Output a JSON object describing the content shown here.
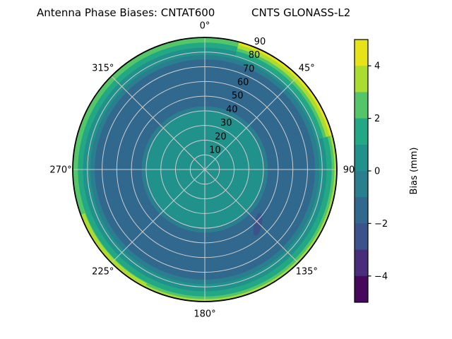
{
  "title": {
    "left": "Antenna Phase Biases: CNTAT600",
    "right": "CNTS GLONASS-L2"
  },
  "chart_data": {
    "type": "polar_contour",
    "title": "Antenna Phase Biases: CNTAT600  /  CNTS GLONASS-L2",
    "description": "Filled polar contour map of antenna phase bias (mm) vs azimuth (0-360 deg) and zenith angle (0-90, labeled radially). Viridis banded colormap, 1 mm per band.",
    "azimuth_tick_labels": [
      {
        "text": "0°",
        "angle_deg": 0
      },
      {
        "text": "45°",
        "angle_deg": 45
      },
      {
        "text": "90",
        "angle_deg": 90
      },
      {
        "text": "135°",
        "angle_deg": 135
      },
      {
        "text": "180°",
        "angle_deg": 180
      },
      {
        "text": "225°",
        "angle_deg": 225
      },
      {
        "text": "270°",
        "angle_deg": 270
      },
      {
        "text": "315°",
        "angle_deg": 315
      }
    ],
    "radial_tick_labels": [
      "10",
      "20",
      "30",
      "40",
      "50",
      "60",
      "70",
      "80",
      "90"
    ],
    "radial_tick_values": [
      10,
      20,
      30,
      40,
      50,
      60,
      70,
      80,
      90
    ],
    "radial_tick_angle_deg": 22.5,
    "zenith_max": 90,
    "grid": {
      "color": "#cccccc",
      "radial_circles": [
        10,
        20,
        30,
        40,
        50,
        60,
        70,
        80
      ],
      "spokes_every_deg": 45
    },
    "contour_discs": [
      {
        "zenith_to": 90,
        "color": "#54c568",
        "bias_band_mm": "2 to 3"
      },
      {
        "zenith_to": 86.5,
        "color": "#22a884",
        "bias_band_mm": "1 to 2"
      },
      {
        "zenith_to": 83,
        "color": "#21918c",
        "bias_band_mm": "0 to 1"
      },
      {
        "zenith_to": 78,
        "color": "#2a7f8e",
        "bias_band_mm": "-1 to 0"
      },
      {
        "zenith_to": 75,
        "color": "#31688e",
        "bias_band_mm": "-2 to -1"
      },
      {
        "zenith_to": 43,
        "color": "#2a7f8e",
        "bias_band_mm": "-1 to 0"
      },
      {
        "zenith_to": 40,
        "color": "#21918c",
        "bias_band_mm": "0 to 1"
      }
    ],
    "contour_sectors": [
      {
        "zenith_from": 88.3,
        "zenith_to": 90,
        "azimuth_from": 75,
        "azimuth_to": 207,
        "color": "#abdc32",
        "bias_band_mm": "3 to 4"
      },
      {
        "zenith_from": 87,
        "zenith_to": 89.3,
        "azimuth_from": 207,
        "azimuth_to": 250,
        "color": "#abdc32",
        "bias_band_mm": "3 to 4"
      },
      {
        "zenith_from": 89.3,
        "zenith_to": 90,
        "azimuth_from": 207,
        "azimuth_to": 250,
        "color": "#e6e419",
        "bias_band_mm": "4 to 5"
      },
      {
        "zenith_from": 85.5,
        "zenith_to": 88,
        "azimuth_from": 15,
        "azimuth_to": 75,
        "color": "#abdc32",
        "bias_band_mm": "3 to 4"
      },
      {
        "zenith_from": 88,
        "zenith_to": 90,
        "azimuth_from": 15,
        "azimuth_to": 75,
        "color": "#e6e419",
        "bias_band_mm": "4 to 5"
      },
      {
        "zenith_from": 83.5,
        "zenith_to": 85.5,
        "azimuth_from": 15,
        "azimuth_to": 75,
        "color": "#54c568",
        "bias_band_mm": "2 to 3"
      },
      {
        "zenith_from": 80.5,
        "zenith_to": 83.5,
        "azimuth_from": 15,
        "azimuth_to": 75,
        "color": "#22a884",
        "bias_band_mm": "1 to 2"
      }
    ],
    "anomaly": {
      "azimuth_deg": 136,
      "zenith_deg": 52,
      "color": "#3b528b",
      "bias_band_mm": "-3 to -2",
      "shape": "small elongated blob"
    },
    "colorbar": {
      "label": "Bias (mm)",
      "tick_labels": [
        "4",
        "2",
        "0",
        "−2",
        "−4"
      ],
      "tick_values": [
        4,
        2,
        0,
        -2,
        -4
      ],
      "value_range": [
        -5,
        5
      ],
      "band_colors_top_to_bottom": [
        "#e6e419",
        "#abdc32",
        "#54c568",
        "#22a884",
        "#21918c",
        "#2a7f8e",
        "#31688e",
        "#3b528b",
        "#472d7b",
        "#46085c"
      ]
    }
  }
}
